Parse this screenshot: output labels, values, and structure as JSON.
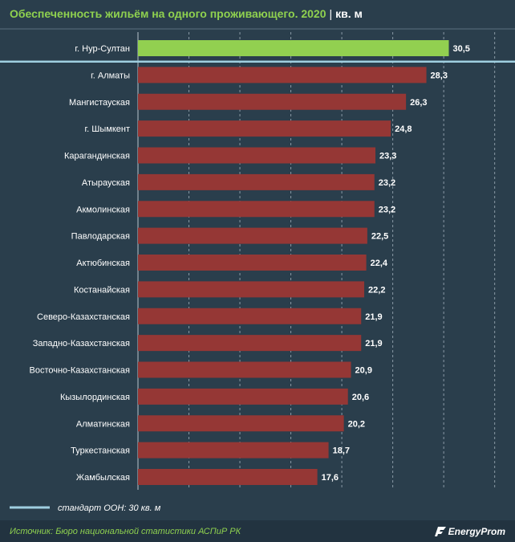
{
  "header": {
    "title": "Обеспеченность жильём на одного проживающего. 2020",
    "separator": "|",
    "unit": "кв. м"
  },
  "legend": {
    "standard_label": "стандарт ООН: 30 кв. м",
    "standard_value": 30
  },
  "footer": {
    "source": "Источник: Бюро национальной статистики АСПиР РК",
    "logo": "EnergyProm"
  },
  "colors": {
    "background": "#2a3e4c",
    "highlight_bar": "#92d050",
    "bar": "#953735",
    "standard_line": "#9fcfe0",
    "title": "#8fd14f"
  },
  "chart_data": {
    "type": "bar",
    "orientation": "horizontal",
    "categories": [
      "г. Нур-Султан",
      "г. Алматы",
      "Мангистауская",
      "г. Шымкент",
      "Карагандинская",
      "Атырауская",
      "Акмолинская",
      "Павлодарская",
      "Актюбинская",
      "Костанайская",
      "Северо-Казахстанская",
      "Западно-Казахстанская",
      "Восточно-Казахстанская",
      "Кызылординская",
      "Алматинская",
      "Туркестанская",
      "Жамбылская"
    ],
    "values": [
      30.5,
      28.3,
      26.3,
      24.8,
      23.3,
      23.2,
      23.2,
      22.5,
      22.4,
      22.2,
      21.9,
      21.9,
      20.9,
      20.6,
      20.2,
      18.7,
      17.6
    ],
    "value_labels": [
      "30,5",
      "28,3",
      "26,3",
      "24,8",
      "23,3",
      "23,2",
      "23,2",
      "22,5",
      "22,4",
      "22,2",
      "21,9",
      "21,9",
      "20,9",
      "20,6",
      "20,2",
      "18,7",
      "17,6"
    ],
    "highlight_index": 0,
    "xlim": [
      0,
      35
    ],
    "grid": true,
    "grid_step": 5
  }
}
